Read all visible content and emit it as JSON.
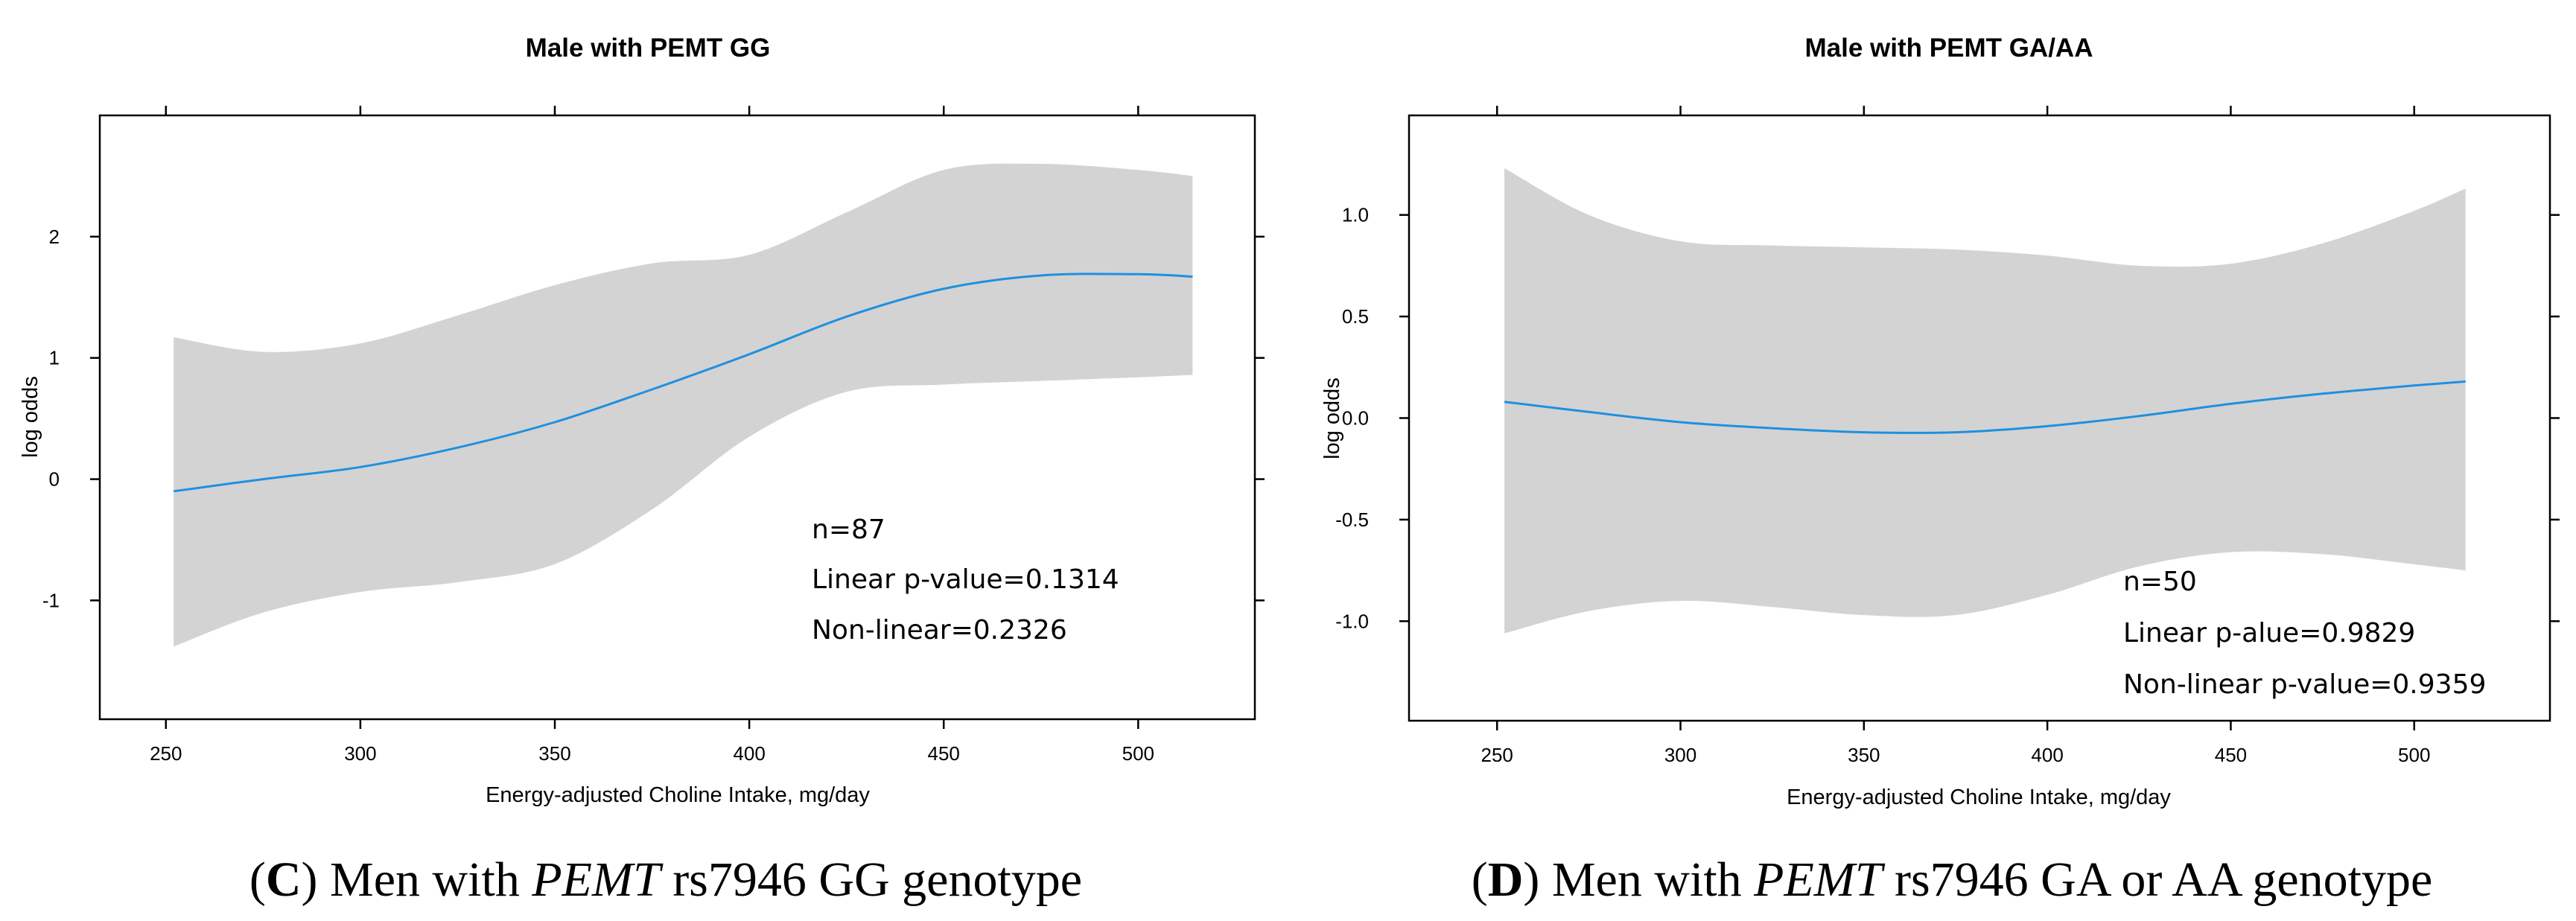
{
  "chart_data": [
    {
      "type": "line",
      "title": "Male with PEMT GG",
      "xlabel": "Energy-adjusted Choline Intake, mg/day",
      "ylabel": "log odds",
      "xlim": [
        233,
        530
      ],
      "ylim": [
        -1.98,
        3.0
      ],
      "xticks": [
        250,
        300,
        350,
        400,
        450,
        500
      ],
      "yticks": [
        -1,
        0,
        1,
        2
      ],
      "ytick_labels": [
        "-1",
        "0",
        "1",
        "2"
      ],
      "series": [
        {
          "name": "log odds estimate",
          "x": [
            252,
            275,
            300,
            325,
            350,
            375,
            400,
            425,
            450,
            475,
            500,
            514
          ],
          "y": [
            -0.1,
            0.0,
            0.1,
            0.26,
            0.47,
            0.74,
            1.03,
            1.34,
            1.57,
            1.68,
            1.69,
            1.67
          ]
        },
        {
          "name": "95% CI lower",
          "x": [
            252,
            275,
            300,
            325,
            350,
            375,
            400,
            425,
            450,
            475,
            500,
            514
          ],
          "y": [
            -1.38,
            -1.1,
            -0.93,
            -0.85,
            -0.7,
            -0.25,
            0.35,
            0.72,
            0.78,
            0.81,
            0.84,
            0.86
          ]
        },
        {
          "name": "95% CI upper",
          "x": [
            252,
            275,
            300,
            325,
            350,
            375,
            400,
            425,
            450,
            475,
            500,
            514
          ],
          "y": [
            1.17,
            1.05,
            1.12,
            1.35,
            1.6,
            1.78,
            1.85,
            2.2,
            2.55,
            2.6,
            2.55,
            2.5
          ]
        }
      ],
      "annotations": [
        "n=87",
        "Linear p-value=0.1314",
        "Non-linear=0.2326"
      ]
    },
    {
      "type": "line",
      "title": "Male with PEMT GA/AA",
      "xlabel": "Energy-adjusted Choline Intake, mg/day",
      "ylabel": "log odds",
      "xlim": [
        226,
        537
      ],
      "ylim": [
        -1.49,
        1.49
      ],
      "xticks": [
        250,
        300,
        350,
        400,
        450,
        500
      ],
      "yticks": [
        -1.0,
        -0.5,
        0.0,
        0.5,
        1.0
      ],
      "ytick_labels": [
        "-1.0",
        "-0.5",
        "0.0",
        "0.5",
        "1.0"
      ],
      "series": [
        {
          "name": "log odds estimate",
          "x": [
            252,
            275,
            300,
            325,
            350,
            375,
            400,
            425,
            450,
            475,
            500,
            514
          ],
          "y": [
            0.08,
            0.03,
            -0.02,
            -0.05,
            -0.07,
            -0.07,
            -0.04,
            0.01,
            0.07,
            0.12,
            0.16,
            0.18
          ]
        },
        {
          "name": "95% CI lower",
          "x": [
            252,
            275,
            300,
            325,
            350,
            375,
            400,
            425,
            450,
            475,
            500,
            514
          ],
          "y": [
            -1.06,
            -0.95,
            -0.9,
            -0.93,
            -0.97,
            -0.97,
            -0.87,
            -0.73,
            -0.66,
            -0.67,
            -0.72,
            -0.75
          ]
        },
        {
          "name": "95% CI upper",
          "x": [
            252,
            275,
            300,
            325,
            350,
            375,
            400,
            425,
            450,
            475,
            500,
            514
          ],
          "y": [
            1.23,
            1.0,
            0.87,
            0.85,
            0.84,
            0.83,
            0.8,
            0.75,
            0.76,
            0.86,
            1.02,
            1.13
          ]
        }
      ],
      "annotations": [
        "n=50",
        "Linear p-alue=0.9829",
        "Non-linear p-value=0.9359"
      ]
    }
  ],
  "captions": [
    {
      "letter": "C",
      "pre": "Men with ",
      "gene": "PEMT",
      "post": " rs7946 GG genotype"
    },
    {
      "letter": "D",
      "pre": "Men with ",
      "gene": "PEMT",
      "post": " rs7946 GA or AA genotype"
    }
  ],
  "colors": {
    "band": "#d3d3d3",
    "curve": "#1e90e0"
  }
}
